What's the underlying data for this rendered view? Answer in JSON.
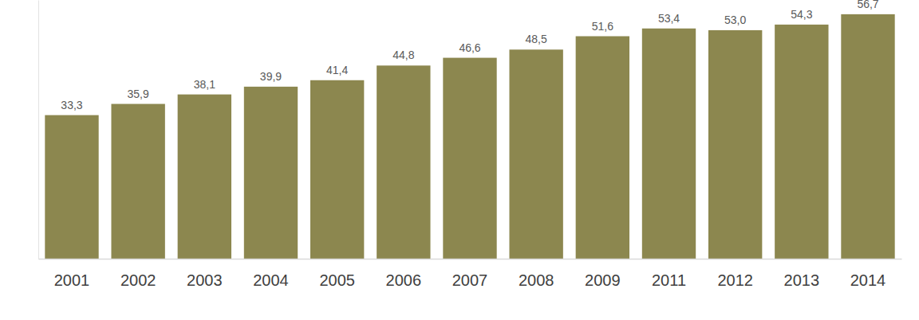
{
  "chart_data": {
    "type": "bar",
    "categories": [
      "2001",
      "2002",
      "2003",
      "2004",
      "2005",
      "2006",
      "2007",
      "2008",
      "2009",
      "2011",
      "2012",
      "2013",
      "2014"
    ],
    "values": [
      33.3,
      35.9,
      38.1,
      39.9,
      41.4,
      44.8,
      46.6,
      48.5,
      51.6,
      53.4,
      53.0,
      54.3,
      56.7
    ],
    "value_labels": [
      "33,3",
      "35,9",
      "38,1",
      "39,9",
      "41,4",
      "44,8",
      "46,6",
      "48,5",
      "51,6",
      "53,4",
      "53,0",
      "54,3",
      "56,7"
    ],
    "color": "#8c874f",
    "ylim": [
      0,
      60
    ],
    "grid": false,
    "data_labels": true,
    "tick_labels": "x"
  }
}
